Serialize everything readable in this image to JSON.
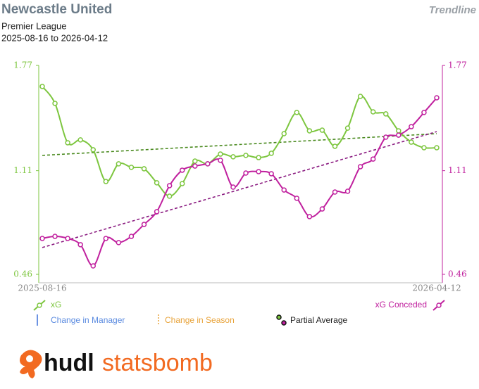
{
  "chart_data": {
    "type": "line",
    "title": "Newcastle United",
    "subtitle": "Premier League",
    "date_range": "2025-08-16 to 2026-04-12",
    "mode_label": "Trendline",
    "categories": [
      "2025-08-16",
      null,
      null,
      null,
      null,
      null,
      null,
      null,
      null,
      null,
      null,
      null,
      null,
      null,
      null,
      null,
      null,
      null,
      null,
      null,
      null,
      null,
      null,
      null,
      null,
      null,
      null,
      null,
      null,
      null,
      null,
      "2026-04-12"
    ],
    "ylim": [
      0.46,
      1.77
    ],
    "yticks": [
      0.46,
      1.11,
      1.77
    ],
    "y2lim": [
      0.46,
      1.77
    ],
    "y2ticks": [
      0.46,
      1.11,
      1.77
    ],
    "series": [
      {
        "name": "xG",
        "color": "#7dc63f",
        "trend_color": "#4a8a1f",
        "values": [
          1.638,
          1.532,
          1.285,
          1.303,
          1.241,
          1.042,
          1.153,
          1.131,
          1.122,
          1.034,
          0.95,
          1.029,
          1.17,
          1.153,
          1.214,
          1.197,
          1.206,
          1.192,
          1.219,
          1.342,
          1.475,
          1.36,
          1.364,
          1.263,
          1.377,
          1.576,
          1.479,
          1.466,
          1.36,
          1.289,
          1.254,
          1.254
        ],
        "trend": [
          1.206,
          1.342
        ]
      },
      {
        "name": "xG Conceded",
        "color": "#c0209e",
        "trend_color": "#8a1a80",
        "axis": "y2",
        "values": [
          0.685,
          0.698,
          0.685,
          0.646,
          0.513,
          0.685,
          0.659,
          0.698,
          0.773,
          0.853,
          1.016,
          1.113,
          1.139,
          1.153,
          1.175,
          1.007,
          1.095,
          1.104,
          1.091,
          0.989,
          0.937,
          0.822,
          0.87,
          0.976,
          0.981,
          1.135,
          1.183,
          1.32,
          1.333,
          1.386,
          1.475,
          1.567
        ],
        "trend": [
          0.628,
          1.355
        ]
      }
    ],
    "legend_extra": [
      "Change in Manager",
      "Change in Season",
      "Partial Average"
    ],
    "logo": {
      "left": "hudl",
      "right": "statsbomb"
    }
  }
}
